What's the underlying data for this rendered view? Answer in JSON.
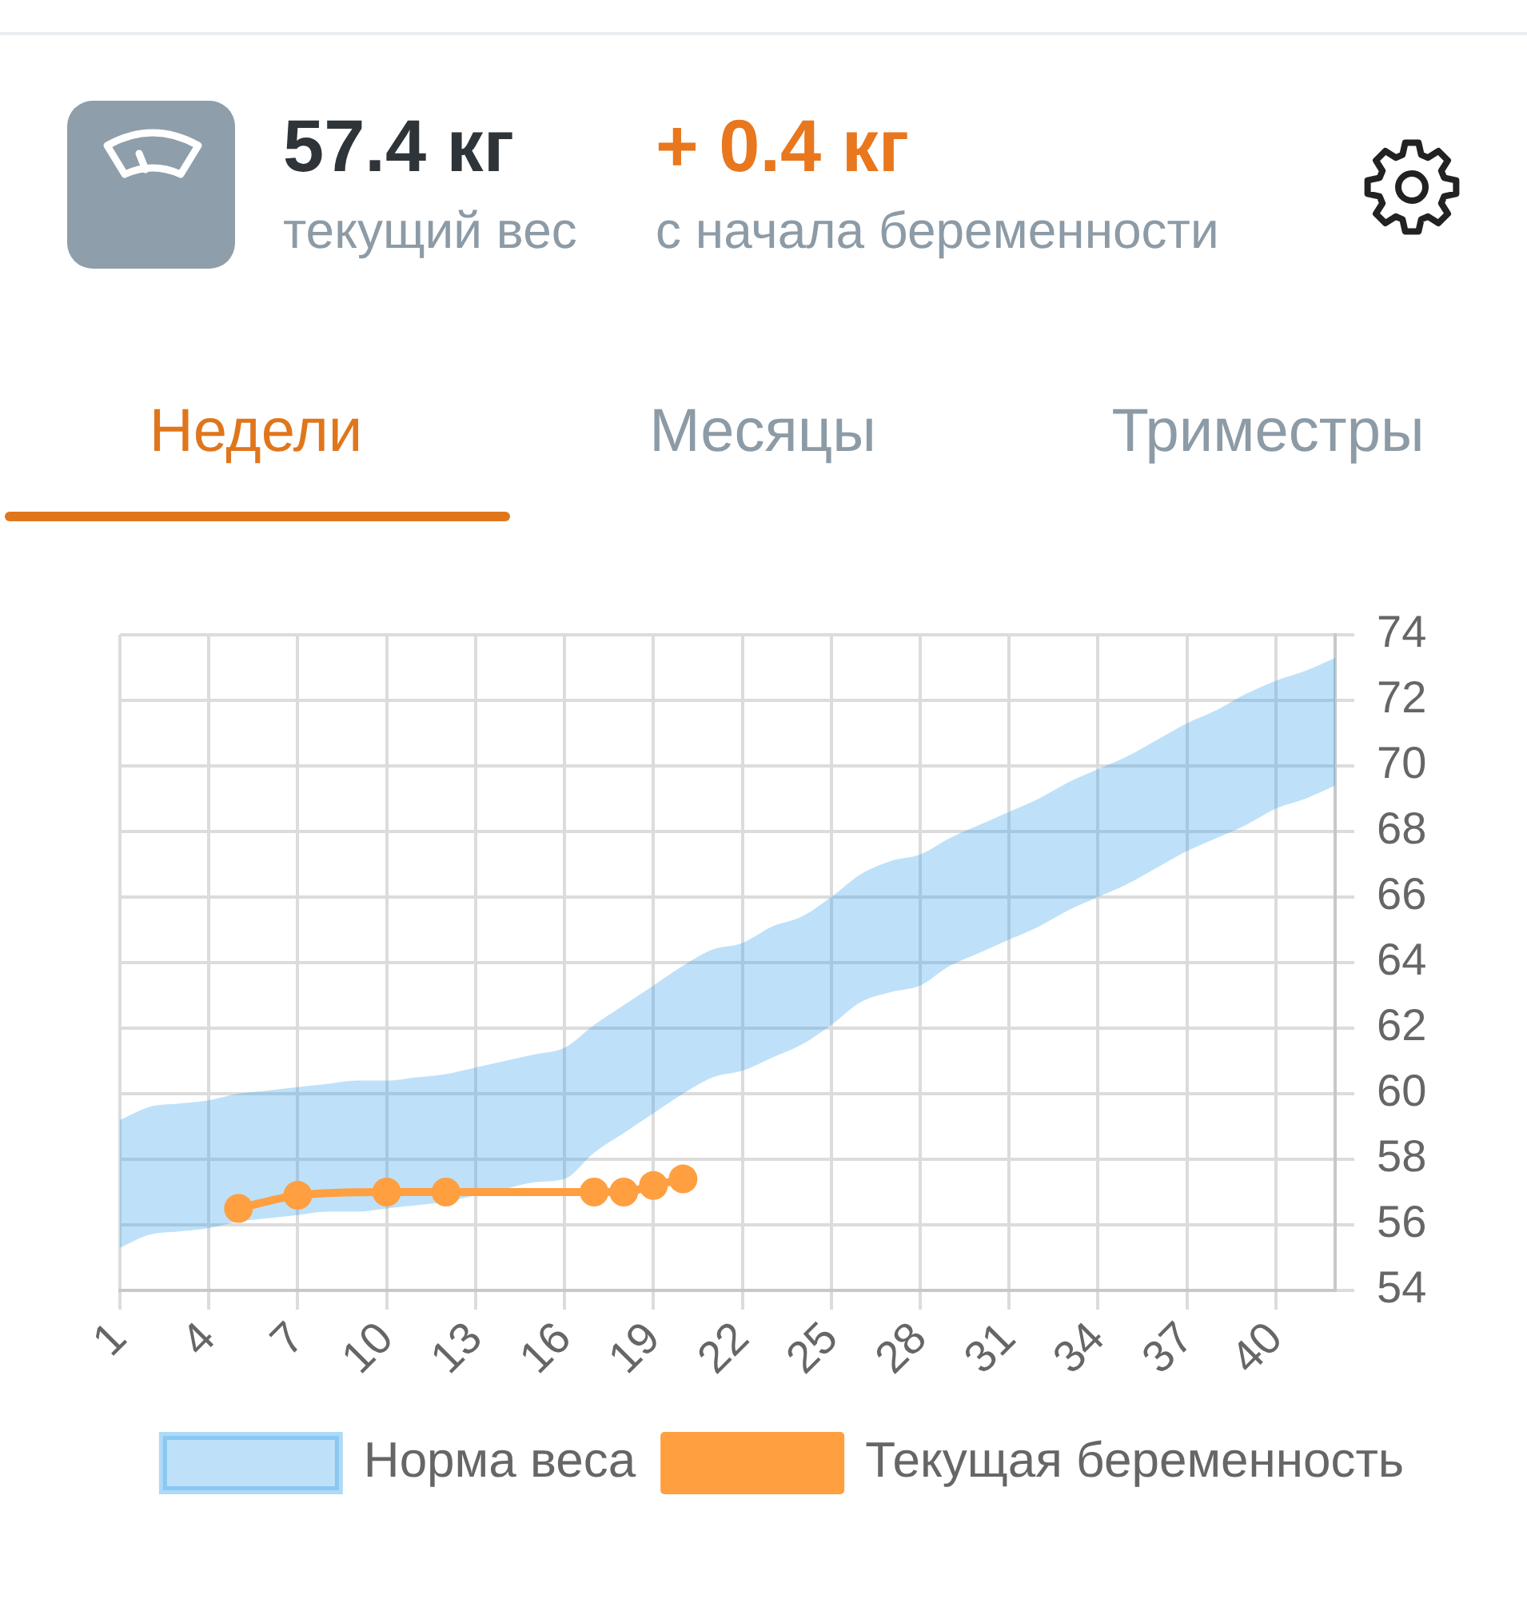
{
  "chart_data": {
    "type": "line",
    "xlim": [
      1,
      42
    ],
    "xticks": [
      1,
      4,
      7,
      10,
      13,
      16,
      19,
      22,
      25,
      28,
      31,
      34,
      37,
      40
    ],
    "ylim": [
      54,
      74
    ],
    "yticks": [
      54,
      56,
      58,
      60,
      62,
      64,
      66,
      68,
      70,
      72,
      74
    ],
    "grid": true,
    "legend": "bottom",
    "series": [
      {
        "name": "Норма веса",
        "type": "area",
        "color": "#36a2eb",
        "x": [
          1,
          2,
          3,
          4,
          5,
          6,
          7,
          8,
          9,
          10,
          11,
          12,
          13,
          14,
          15,
          16,
          17,
          18,
          19,
          20,
          21,
          22,
          23,
          24,
          25,
          26,
          27,
          28,
          29,
          30,
          31,
          32,
          33,
          34,
          35,
          36,
          37,
          38,
          39,
          40,
          41,
          42
        ],
        "values": [
          null,
          null,
          null,
          null,
          null,
          null,
          null,
          null,
          null,
          null,
          null,
          null,
          null,
          null,
          null,
          null,
          null,
          null,
          null,
          null,
          null,
          null,
          null,
          null,
          null,
          null,
          null,
          null,
          null,
          null,
          null,
          null,
          null,
          null,
          null,
          null,
          null,
          null,
          null,
          null,
          null,
          null
        ],
        "lower": [
          55.3,
          55.7,
          55.8,
          55.9,
          56.1,
          56.2,
          56.3,
          56.4,
          56.4,
          56.5,
          56.6,
          56.7,
          56.9,
          57.1,
          57.3,
          57.4,
          58.2,
          58.8,
          59.4,
          60.0,
          60.5,
          60.7,
          61.1,
          61.5,
          62.1,
          62.8,
          63.1,
          63.3,
          63.9,
          64.3,
          64.7,
          65.1,
          65.6,
          66.0,
          66.4,
          66.9,
          67.4,
          67.8,
          68.2,
          68.7,
          69.0,
          69.4
        ],
        "upper": [
          59.2,
          59.6,
          59.7,
          59.8,
          60.0,
          60.1,
          60.2,
          60.3,
          60.4,
          60.4,
          60.5,
          60.6,
          60.8,
          61.0,
          61.2,
          61.4,
          62.1,
          62.7,
          63.3,
          63.9,
          64.4,
          64.6,
          65.1,
          65.4,
          66.0,
          66.7,
          67.1,
          67.3,
          67.8,
          68.2,
          68.6,
          69.0,
          69.5,
          69.9,
          70.3,
          70.8,
          71.3,
          71.7,
          72.2,
          72.6,
          72.9,
          73.3
        ]
      },
      {
        "name": "Текущая беременность",
        "type": "line",
        "color": "#ff9f40",
        "marker": "circle",
        "x": [
          5,
          7,
          10,
          12,
          17,
          18,
          19,
          20
        ],
        "values": [
          56.5,
          56.9,
          57.0,
          57.0,
          57.0,
          57.0,
          57.2,
          57.4
        ]
      }
    ],
    "annotations": [
      "57.4 кг",
      "текущий вес",
      "+ 0.4 кг",
      "с начала беременности",
      "Недели",
      "Месяцы",
      "Триместры"
    ]
  }
}
